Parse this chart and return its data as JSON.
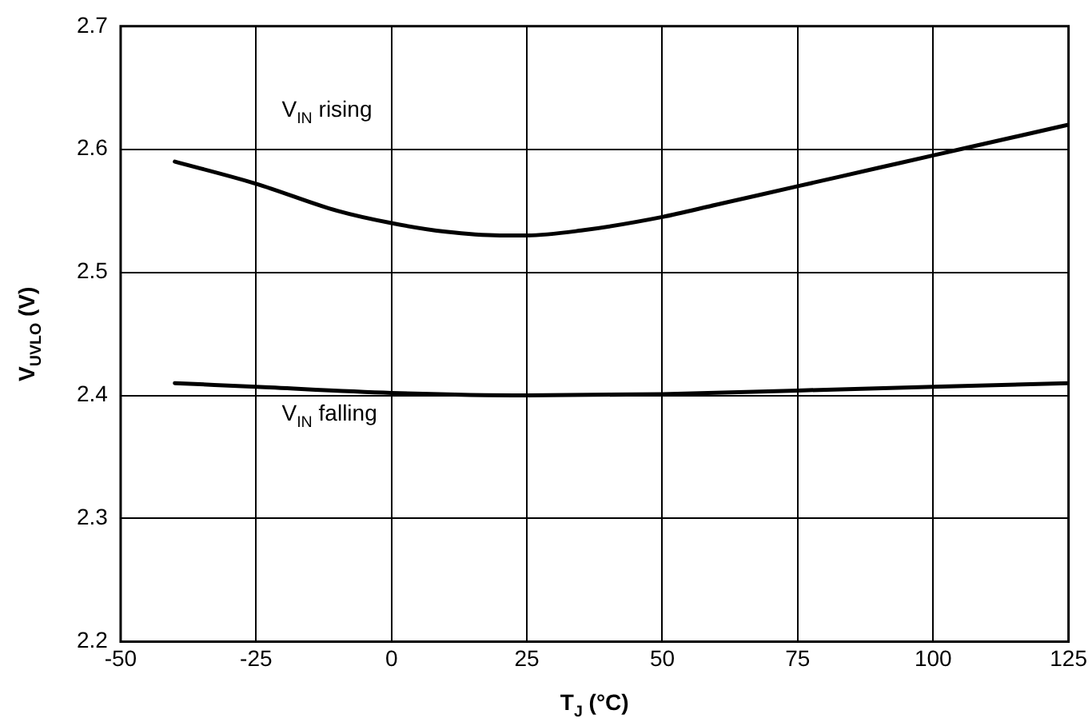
{
  "chart_data": {
    "type": "line",
    "xlabel": "T$_{J}$ (°C)",
    "ylabel": "V$_{UVLO}$ (V)",
    "xlim": [
      -50,
      125
    ],
    "xticks": [
      -50,
      -25,
      0,
      25,
      50,
      75,
      100,
      125
    ],
    "ylim": [
      2.2,
      2.7
    ],
    "yticks": [
      {
        "value": 2.2,
        "label": "2.2"
      },
      {
        "value": 2.3,
        "label": "2.3"
      },
      {
        "value": 2.4,
        "label": "2.4"
      },
      {
        "value": 2.5,
        "label": "2.5"
      },
      {
        "value": 2.6,
        "label": "2.6"
      },
      {
        "value": 2.7,
        "label": "2.7"
      }
    ],
    "grid": true,
    "legend": false,
    "marker": "none",
    "line_style": "solid",
    "series": [
      {
        "color": "#000000",
        "x": [
          -40,
          -25,
          -10,
          0,
          10,
          20,
          25,
          35,
          50,
          60,
          75,
          90,
          100,
          110,
          125
        ],
        "values": [
          2.59,
          2.572,
          2.55,
          2.54,
          2.533,
          2.53,
          2.53,
          2.534,
          2.545,
          2.555,
          2.57,
          2.585,
          2.595,
          2.605,
          2.62
        ]
      },
      {
        "color": "#000000",
        "x": [
          -40,
          -25,
          0,
          25,
          50,
          75,
          100,
          125
        ],
        "values": [
          2.41,
          2.407,
          2.402,
          2.4,
          2.401,
          2.404,
          2.407,
          2.41
        ]
      }
    ],
    "annotations": [
      "V$_{IN}$ rising",
      "V$_{IN}$ falling"
    ]
  }
}
